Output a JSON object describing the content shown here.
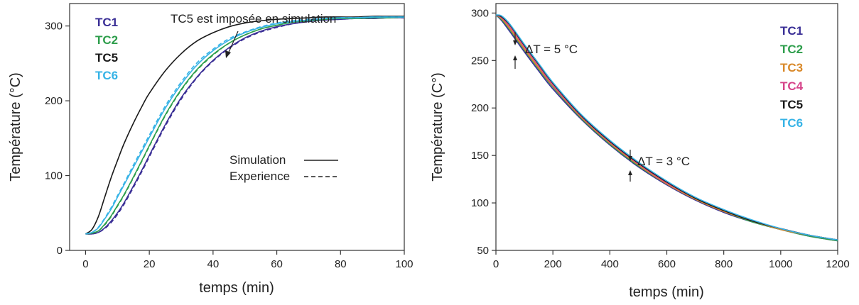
{
  "colors": {
    "TC1": "#3a2f96",
    "TC2": "#2e9e4c",
    "TC3": "#d9892a",
    "TC4": "#d6448a",
    "TC5": "#1a1a1a",
    "TC6": "#36b3e6"
  },
  "chart_data": [
    {
      "type": "line",
      "title": "",
      "xlabel": "temps (min)",
      "ylabel": "Température (°C)",
      "xlim": [
        -5,
        100
      ],
      "ylim": [
        0,
        330
      ],
      "xticks": [
        0,
        20,
        40,
        60,
        80,
        100
      ],
      "yticks": [
        0,
        100,
        200,
        300
      ],
      "grid": false,
      "legend_position": "top-left",
      "legend": [
        "TC1",
        "TC2",
        "TC5",
        "TC6"
      ],
      "style_legend": [
        {
          "label": "Simulation",
          "style": "solid"
        },
        {
          "label": "Experience",
          "style": "dashed"
        }
      ],
      "annotations": [
        {
          "text": "TC5 est imposée en simulation",
          "x": 45,
          "y": 268
        }
      ],
      "x": [
        0,
        2,
        4,
        6,
        8,
        10,
        12,
        15,
        18,
        20,
        25,
        30,
        35,
        40,
        45,
        50,
        55,
        60,
        65,
        70,
        75,
        80,
        85,
        90,
        95,
        100
      ],
      "series": [
        {
          "name": "TC1",
          "kind": "simulation",
          "values": [
            22,
            22,
            24,
            30,
            39,
            50,
            63,
            86,
            110,
            127,
            168,
            204,
            232,
            254,
            271,
            284,
            293,
            299,
            303,
            306,
            308,
            309,
            310,
            310,
            311,
            311
          ]
        },
        {
          "name": "TC1",
          "kind": "experience",
          "values": [
            22,
            22,
            24,
            29,
            37,
            48,
            61,
            84,
            108,
            125,
            166,
            202,
            231,
            253,
            270,
            283,
            292,
            298,
            303,
            306,
            308,
            309,
            310,
            310,
            311,
            311
          ]
        },
        {
          "name": "TC2",
          "kind": "simulation",
          "values": [
            22,
            23,
            26,
            35,
            46,
            60,
            74,
            98,
            123,
            140,
            181,
            215,
            242,
            262,
            277,
            288,
            296,
            301,
            305,
            307,
            309,
            310,
            310,
            311,
            311,
            312
          ]
        },
        {
          "name": "TC2",
          "kind": "experience",
          "values": [
            22,
            23,
            26,
            34,
            45,
            59,
            73,
            97,
            122,
            139,
            180,
            214,
            241,
            261,
            277,
            288,
            296,
            301,
            305,
            307,
            309,
            310,
            310,
            311,
            311,
            312
          ]
        },
        {
          "name": "TC5",
          "kind": "simulation",
          "values": [
            22,
            28,
            45,
            71,
            97,
            120,
            142,
            170,
            195,
            210,
            240,
            263,
            280,
            291,
            299,
            304,
            307,
            309,
            310,
            311,
            312,
            312,
            312,
            313,
            313,
            313
          ]
        },
        {
          "name": "TC6",
          "kind": "simulation",
          "values": [
            22,
            24,
            30,
            42,
            55,
            71,
            87,
            111,
            135,
            151,
            190,
            222,
            248,
            267,
            281,
            291,
            298,
            303,
            306,
            308,
            310,
            311,
            311,
            312,
            312,
            312
          ]
        },
        {
          "name": "TC6",
          "kind": "experience",
          "values": [
            22,
            24,
            31,
            43,
            57,
            73,
            89,
            114,
            138,
            154,
            193,
            225,
            251,
            269,
            283,
            292,
            299,
            304,
            307,
            309,
            310,
            311,
            311,
            312,
            312,
            312
          ]
        }
      ]
    },
    {
      "type": "line",
      "title": "",
      "xlabel": "temps (min)",
      "ylabel": "Température (C°)",
      "xlim": [
        0,
        1200
      ],
      "ylim": [
        50,
        310
      ],
      "xticks": [
        0,
        200,
        400,
        600,
        800,
        1000,
        1200
      ],
      "yticks": [
        50,
        100,
        150,
        200,
        250,
        300
      ],
      "grid": false,
      "legend_position": "top-right",
      "legend": [
        "TC1",
        "TC2",
        "TC3",
        "TC4",
        "TC5",
        "TC6"
      ],
      "annotations": [
        {
          "text": "ΔT = 5 °C",
          "x": 65,
          "y": 272
        },
        {
          "text": "ΔT = 3 °C",
          "x": 470,
          "y": 145
        }
      ],
      "x": [
        0,
        20,
        50,
        100,
        150,
        200,
        300,
        400,
        500,
        600,
        700,
        800,
        900,
        1000,
        1100,
        1200
      ],
      "series": [
        {
          "name": "TC1",
          "values": [
            298,
            292,
            280,
            259,
            239,
            220,
            188,
            161,
            138,
            119,
            103,
            90,
            80,
            72,
            65,
            60
          ]
        },
        {
          "name": "TC2",
          "values": [
            298,
            293,
            282,
            261,
            241,
            222,
            189,
            162,
            139,
            120,
            104,
            91,
            80,
            72,
            65,
            60
          ]
        },
        {
          "name": "TC3",
          "values": [
            298,
            294,
            283,
            262,
            242,
            223,
            190,
            163,
            140,
            120,
            104,
            91,
            81,
            72,
            66,
            61
          ]
        },
        {
          "name": "TC4",
          "values": [
            298,
            295,
            285,
            264,
            244,
            224,
            191,
            164,
            141,
            121,
            105,
            92,
            81,
            73,
            66,
            61
          ]
        },
        {
          "name": "TC5",
          "values": [
            298,
            296,
            287,
            266,
            246,
            226,
            192,
            165,
            142,
            122,
            105,
            92,
            81,
            73,
            66,
            61
          ]
        },
        {
          "name": "TC6",
          "values": [
            298,
            297,
            288,
            267,
            247,
            227,
            193,
            166,
            143,
            123,
            106,
            93,
            82,
            73,
            66,
            61
          ]
        }
      ]
    }
  ]
}
